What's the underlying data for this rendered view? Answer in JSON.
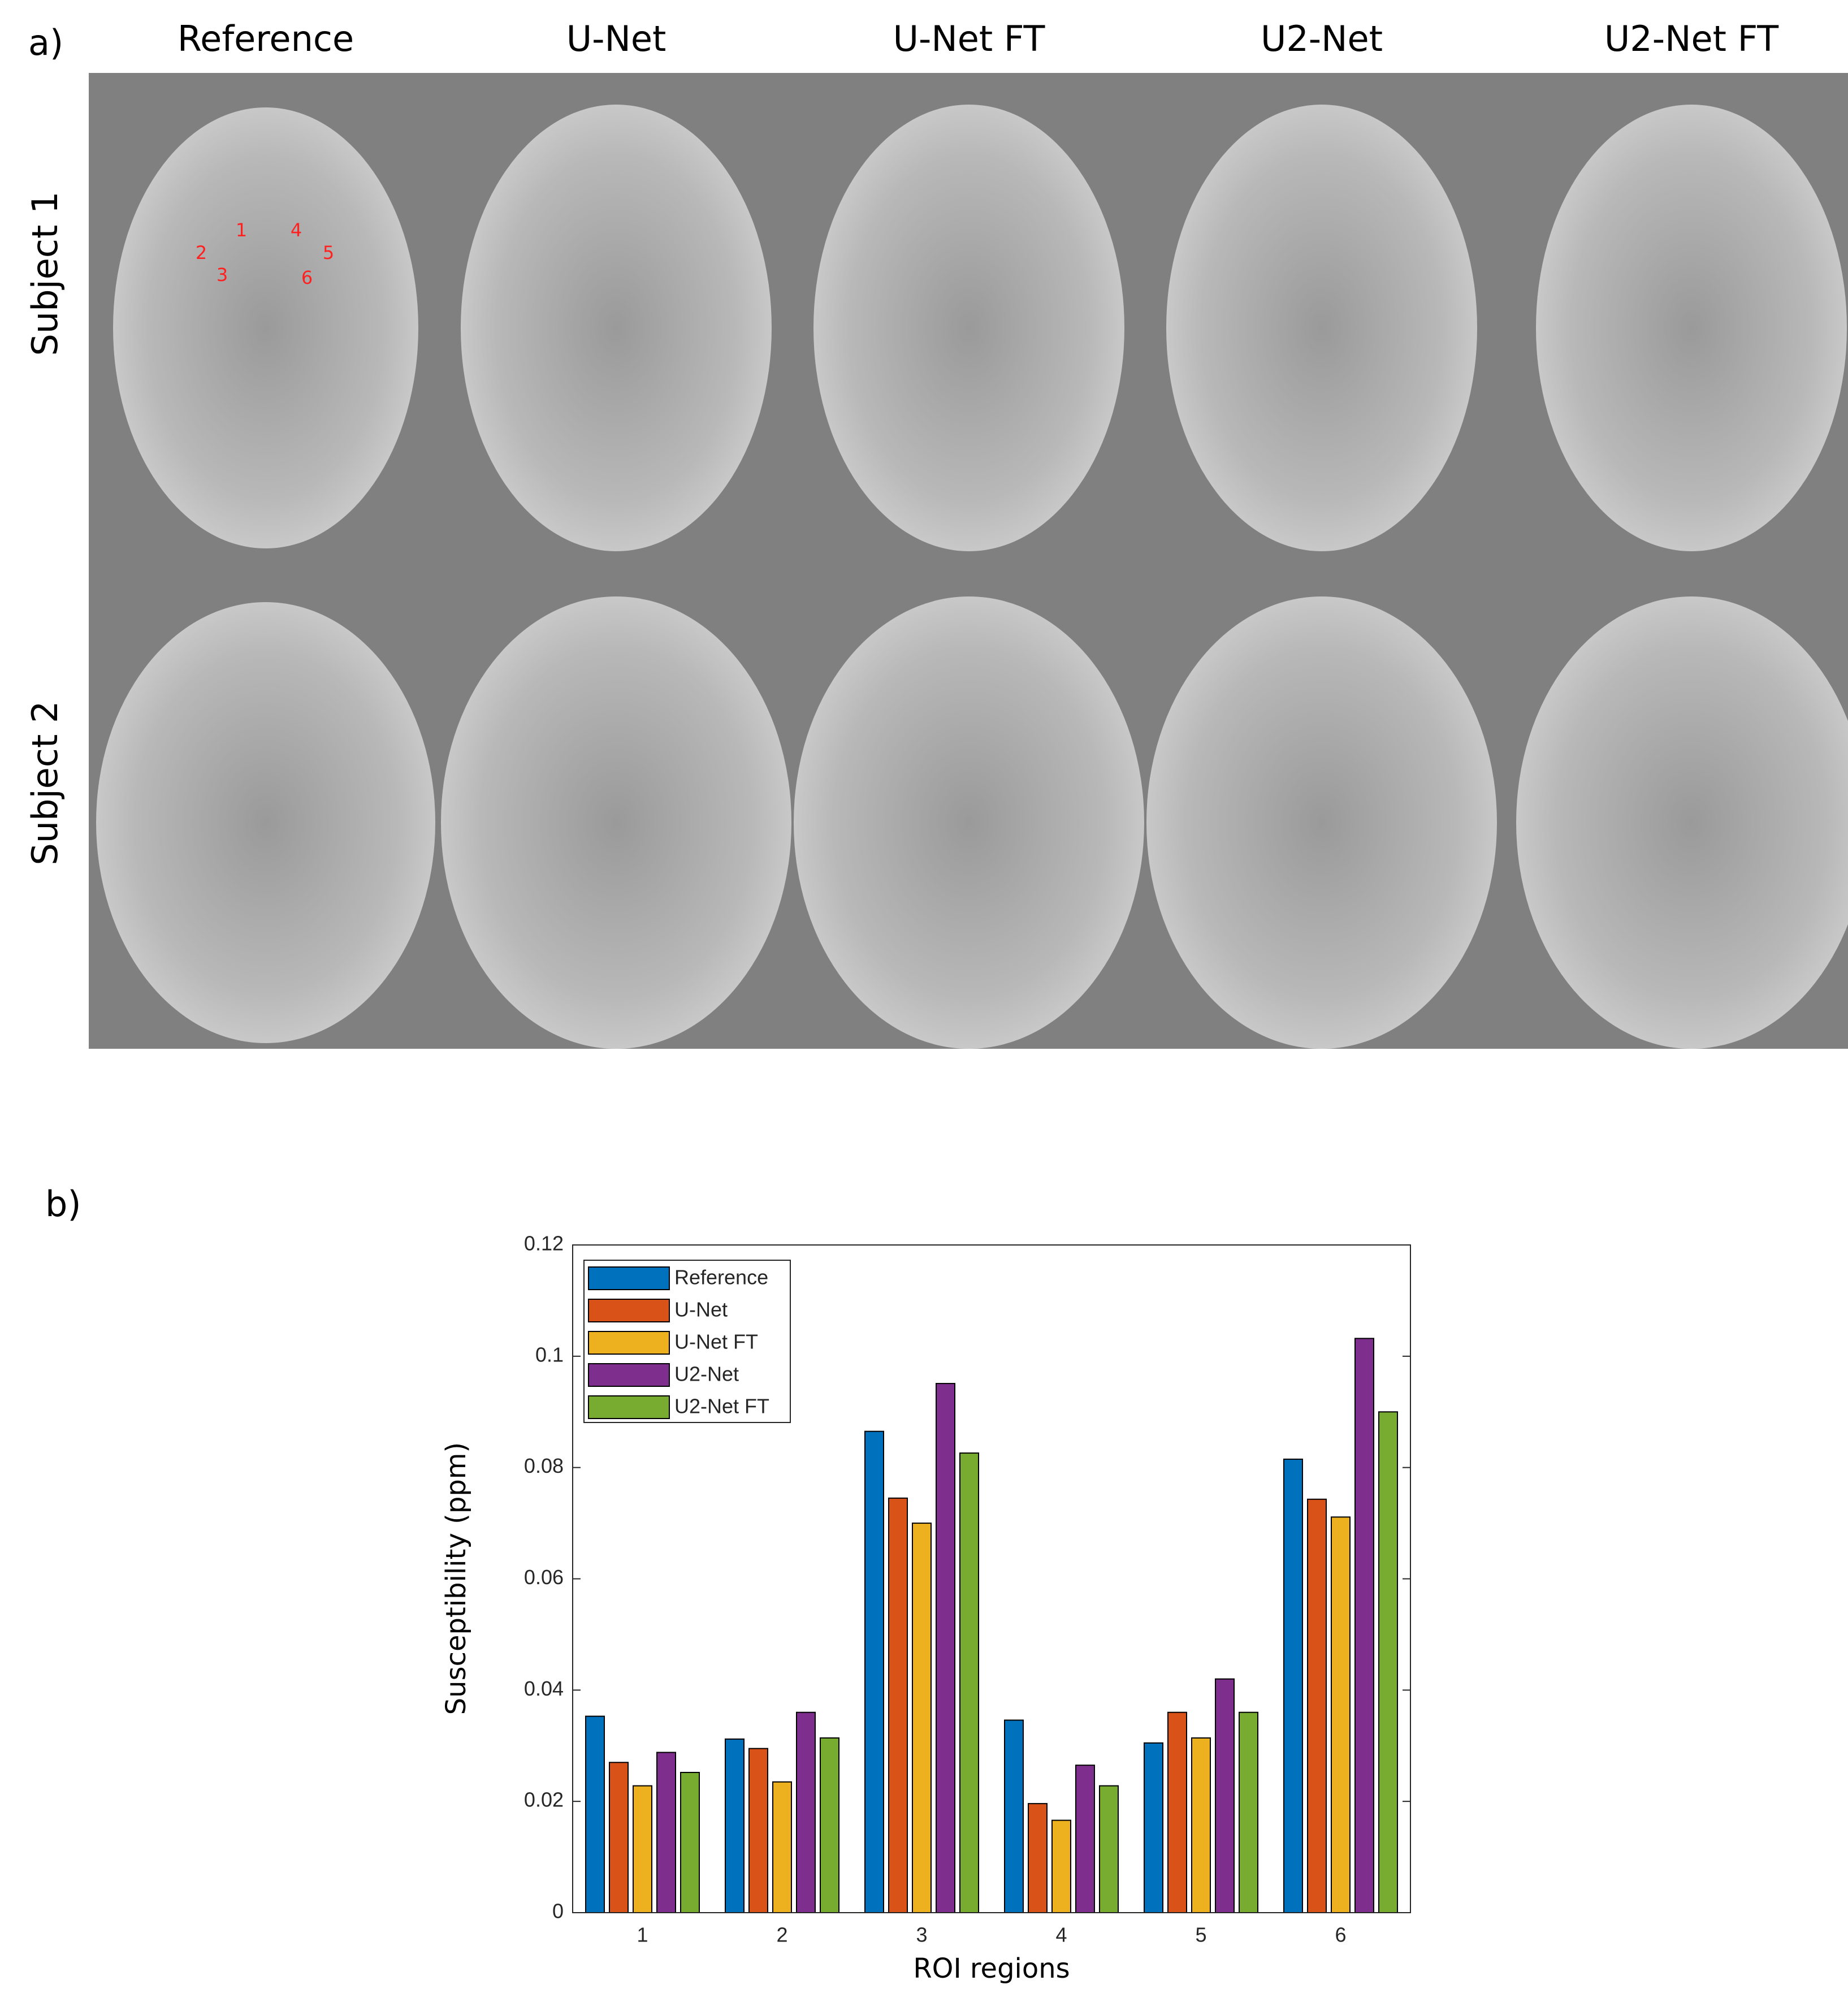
{
  "panel_a": {
    "label": "a)",
    "columns": [
      "Reference",
      "U-Net",
      "U-Net FT",
      "U2-Net",
      "U2-Net FT"
    ],
    "rows": [
      "Subject 1",
      "Subject 2"
    ],
    "roi_labels": [
      "1",
      "2",
      "3",
      "4",
      "5",
      "6"
    ]
  },
  "panel_b": {
    "label": "b)"
  },
  "chart_data": {
    "type": "bar",
    "xlabel": "ROI regions",
    "ylabel": "Susceptibility (ppm)",
    "categories": [
      "1",
      "2",
      "3",
      "4",
      "5",
      "6"
    ],
    "series": [
      {
        "name": "Reference",
        "color": "#0072bd",
        "values": [
          0.0353,
          0.0312,
          0.0865,
          0.0346,
          0.0305,
          0.0815
        ]
      },
      {
        "name": "U-Net",
        "color": "#d95319",
        "values": [
          0.027,
          0.0295,
          0.0745,
          0.0196,
          0.036,
          0.0743
        ]
      },
      {
        "name": "U-Net FT",
        "color": "#edb120",
        "values": [
          0.0228,
          0.0235,
          0.07,
          0.0166,
          0.0314,
          0.0711
        ]
      },
      {
        "name": "U2-Net",
        "color": "#7e2f8e",
        "values": [
          0.0288,
          0.036,
          0.0951,
          0.0265,
          0.042,
          0.1032
        ]
      },
      {
        "name": "U2-Net FT",
        "color": "#77ac30",
        "values": [
          0.0252,
          0.0314,
          0.0826,
          0.0228,
          0.036,
          0.09
        ]
      }
    ],
    "ylim": [
      0,
      0.12
    ],
    "yticks": [
      0,
      0.02,
      0.04,
      0.06,
      0.08,
      0.1,
      0.12
    ],
    "legend": "upper-left"
  }
}
